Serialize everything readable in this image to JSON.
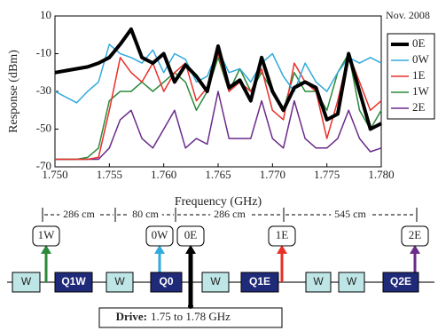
{
  "chart_data": {
    "type": "line",
    "x_label": "Frequency (GHz)",
    "y_label": "Response (dBm)",
    "annotation": "Nov. 2008",
    "x": [
      1.75,
      1.751,
      1.752,
      1.753,
      1.754,
      1.755,
      1.756,
      1.757,
      1.758,
      1.759,
      1.76,
      1.761,
      1.762,
      1.763,
      1.764,
      1.765,
      1.766,
      1.767,
      1.768,
      1.769,
      1.77,
      1.771,
      1.772,
      1.773,
      1.774,
      1.775,
      1.776,
      1.777,
      1.778,
      1.779,
      1.78
    ],
    "series": [
      {
        "name": "0E",
        "color": "#000000",
        "width": 4,
        "values": [
          -20,
          -19,
          -18,
          -17,
          -15,
          -12,
          -5,
          3,
          -12,
          -15,
          -10,
          -25,
          -16,
          -22,
          -30,
          -6,
          -28,
          -24,
          -35,
          -12,
          -30,
          -40,
          -28,
          -25,
          -28,
          -45,
          -42,
          -10,
          -30,
          -50,
          -47
        ]
      },
      {
        "name": "0W",
        "color": "#33aadd",
        "width": 1.5,
        "values": [
          -30,
          -33,
          -36,
          -30,
          -25,
          -5,
          -10,
          -12,
          -15,
          -8,
          -20,
          -10,
          -13,
          -25,
          -22,
          -8,
          -20,
          -18,
          -25,
          -15,
          -10,
          -22,
          -30,
          -15,
          -25,
          -30,
          -20,
          -12,
          -15,
          -12,
          -15
        ]
      },
      {
        "name": "1E",
        "color": "#e8302a",
        "width": 1.5,
        "values": [
          -66,
          -66,
          -66,
          -66,
          -65,
          -40,
          -12,
          -20,
          -25,
          -15,
          -30,
          -20,
          -15,
          -35,
          -28,
          -10,
          -30,
          -25,
          -30,
          -18,
          -40,
          -45,
          -15,
          -25,
          -30,
          -55,
          -35,
          -10,
          -25,
          -40,
          -35
        ]
      },
      {
        "name": "1W",
        "color": "#2a8a3a",
        "width": 1.5,
        "values": [
          -66,
          -66,
          -66,
          -65,
          -60,
          -35,
          -30,
          -30,
          -25,
          -30,
          -25,
          -20,
          -25,
          -40,
          -30,
          -12,
          -30,
          -18,
          -30,
          -20,
          -30,
          -40,
          -20,
          -30,
          -30,
          -40,
          -20,
          -10,
          -40,
          -50,
          -40
        ]
      },
      {
        "name": "2E",
        "color": "#6a2a8a",
        "width": 1.5,
        "values": [
          -66,
          -66,
          -66,
          -66,
          -66,
          -60,
          -45,
          -40,
          -55,
          -60,
          -50,
          -40,
          -60,
          -55,
          -58,
          -30,
          -55,
          -55,
          -55,
          -35,
          -55,
          -60,
          -35,
          -55,
          -60,
          -60,
          -55,
          -40,
          -55,
          -62,
          -60
        ]
      }
    ],
    "xlim": [
      1.75,
      1.78
    ],
    "xticks": [
      {
        "value": 1.75,
        "label": "1.750"
      },
      {
        "value": 1.755,
        "label": "1.755"
      },
      {
        "value": 1.76,
        "label": "1.760"
      },
      {
        "value": 1.765,
        "label": "1.765"
      },
      {
        "value": 1.77,
        "label": "1.770"
      },
      {
        "value": 1.775,
        "label": "1.775"
      },
      {
        "value": 1.78,
        "label": "1.780"
      }
    ],
    "ylim": [
      -70,
      10
    ],
    "yticks": [
      10,
      -10,
      -30,
      -50,
      -70
    ],
    "legend": "right"
  },
  "diagram": {
    "dimensions": [
      "286 cm",
      "80 cm",
      "286 cm",
      "545 cm"
    ],
    "antennas": [
      {
        "label": "1W",
        "color": "#2a8a3a"
      },
      {
        "label": "0W",
        "color": "#33aadd"
      },
      {
        "label": "0E",
        "color": "#000000"
      },
      {
        "label": "1E",
        "color": "#e8302a"
      },
      {
        "label": "2E",
        "color": "#6a2a8a"
      }
    ],
    "components": [
      "W",
      "Q1W",
      "W",
      "Q0",
      "W",
      "Q1E",
      "W",
      "W",
      "Q2E"
    ],
    "drive": {
      "label": "Drive:",
      "range": "1.75 to 1.78 GHz"
    }
  }
}
